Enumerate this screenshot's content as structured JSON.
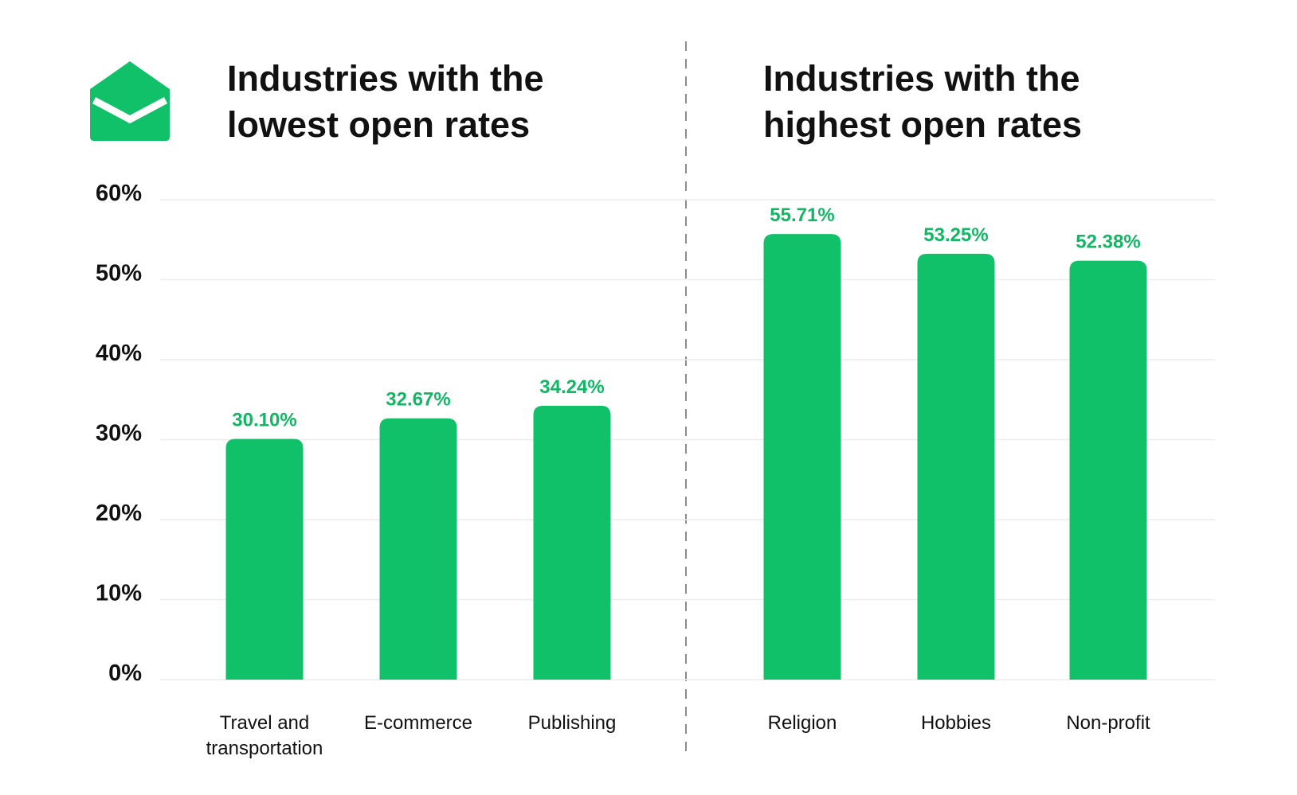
{
  "titles": {
    "left": [
      "Industries with the",
      "lowest open rates"
    ],
    "right": [
      "Industries with the",
      "highest open rates"
    ]
  },
  "colors": {
    "bar": "#10c16a",
    "label": "#10b864",
    "text": "#111111",
    "grid": "#ececec"
  },
  "icons": {
    "logo": "open-envelope-icon"
  },
  "chart_data": [
    {
      "type": "bar",
      "title": "Industries with the lowest open rates",
      "categories": [
        "Travel and transportation",
        "E-commerce",
        "Publishing"
      ],
      "category_lines": [
        [
          "Travel and",
          "transportation"
        ],
        [
          "E-commerce"
        ],
        [
          "Publishing"
        ]
      ],
      "values": [
        30.1,
        32.67,
        34.24
      ],
      "data_labels": [
        "30.10%",
        "32.67%",
        "34.24%"
      ],
      "ylim": [
        0,
        60
      ],
      "yticks": [
        "0%",
        "10%",
        "20%",
        "30%",
        "40%",
        "50%",
        "60%"
      ],
      "grid": true
    },
    {
      "type": "bar",
      "title": "Industries with the highest open rates",
      "categories": [
        "Religion",
        "Hobbies",
        "Non-profit"
      ],
      "category_lines": [
        [
          "Religion"
        ],
        [
          "Hobbies"
        ],
        [
          "Non-profit"
        ]
      ],
      "values": [
        55.71,
        53.25,
        52.38
      ],
      "data_labels": [
        "55.71%",
        "53.25%",
        "52.38%"
      ],
      "ylim": [
        0,
        60
      ],
      "grid": true
    }
  ]
}
